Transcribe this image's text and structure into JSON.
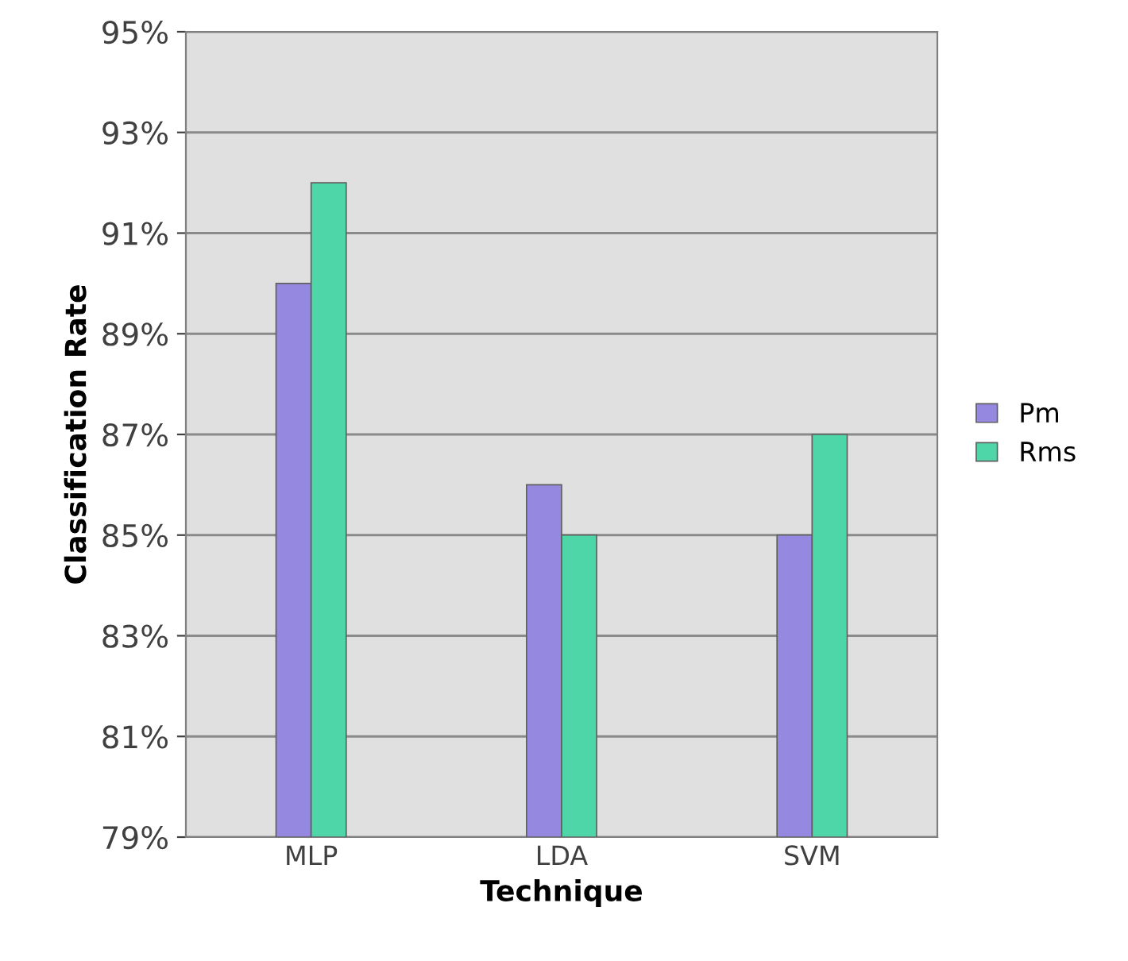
{
  "chart_data": {
    "type": "bar",
    "xlabel": "Technique",
    "ylabel": "Classification Rate",
    "categories": [
      "MLP",
      "LDA",
      "SVM"
    ],
    "series": [
      {
        "name": "Pm",
        "color": "#9488e0",
        "values": [
          90,
          86,
          85
        ]
      },
      {
        "name": "Rms",
        "color": "#4ed6a9",
        "values": [
          92,
          85,
          87
        ]
      }
    ],
    "ylim": [
      79,
      95
    ],
    "yticks": [
      {
        "value": 79,
        "label": "79%"
      },
      {
        "value": 81,
        "label": "81%"
      },
      {
        "value": 83,
        "label": "83%"
      },
      {
        "value": 85,
        "label": "85%"
      },
      {
        "value": 87,
        "label": "87%"
      },
      {
        "value": 89,
        "label": "89%"
      },
      {
        "value": 91,
        "label": "91%"
      },
      {
        "value": 93,
        "label": "93%"
      },
      {
        "value": 95,
        "label": "95%"
      }
    ],
    "grid": "y",
    "legend": "right"
  }
}
